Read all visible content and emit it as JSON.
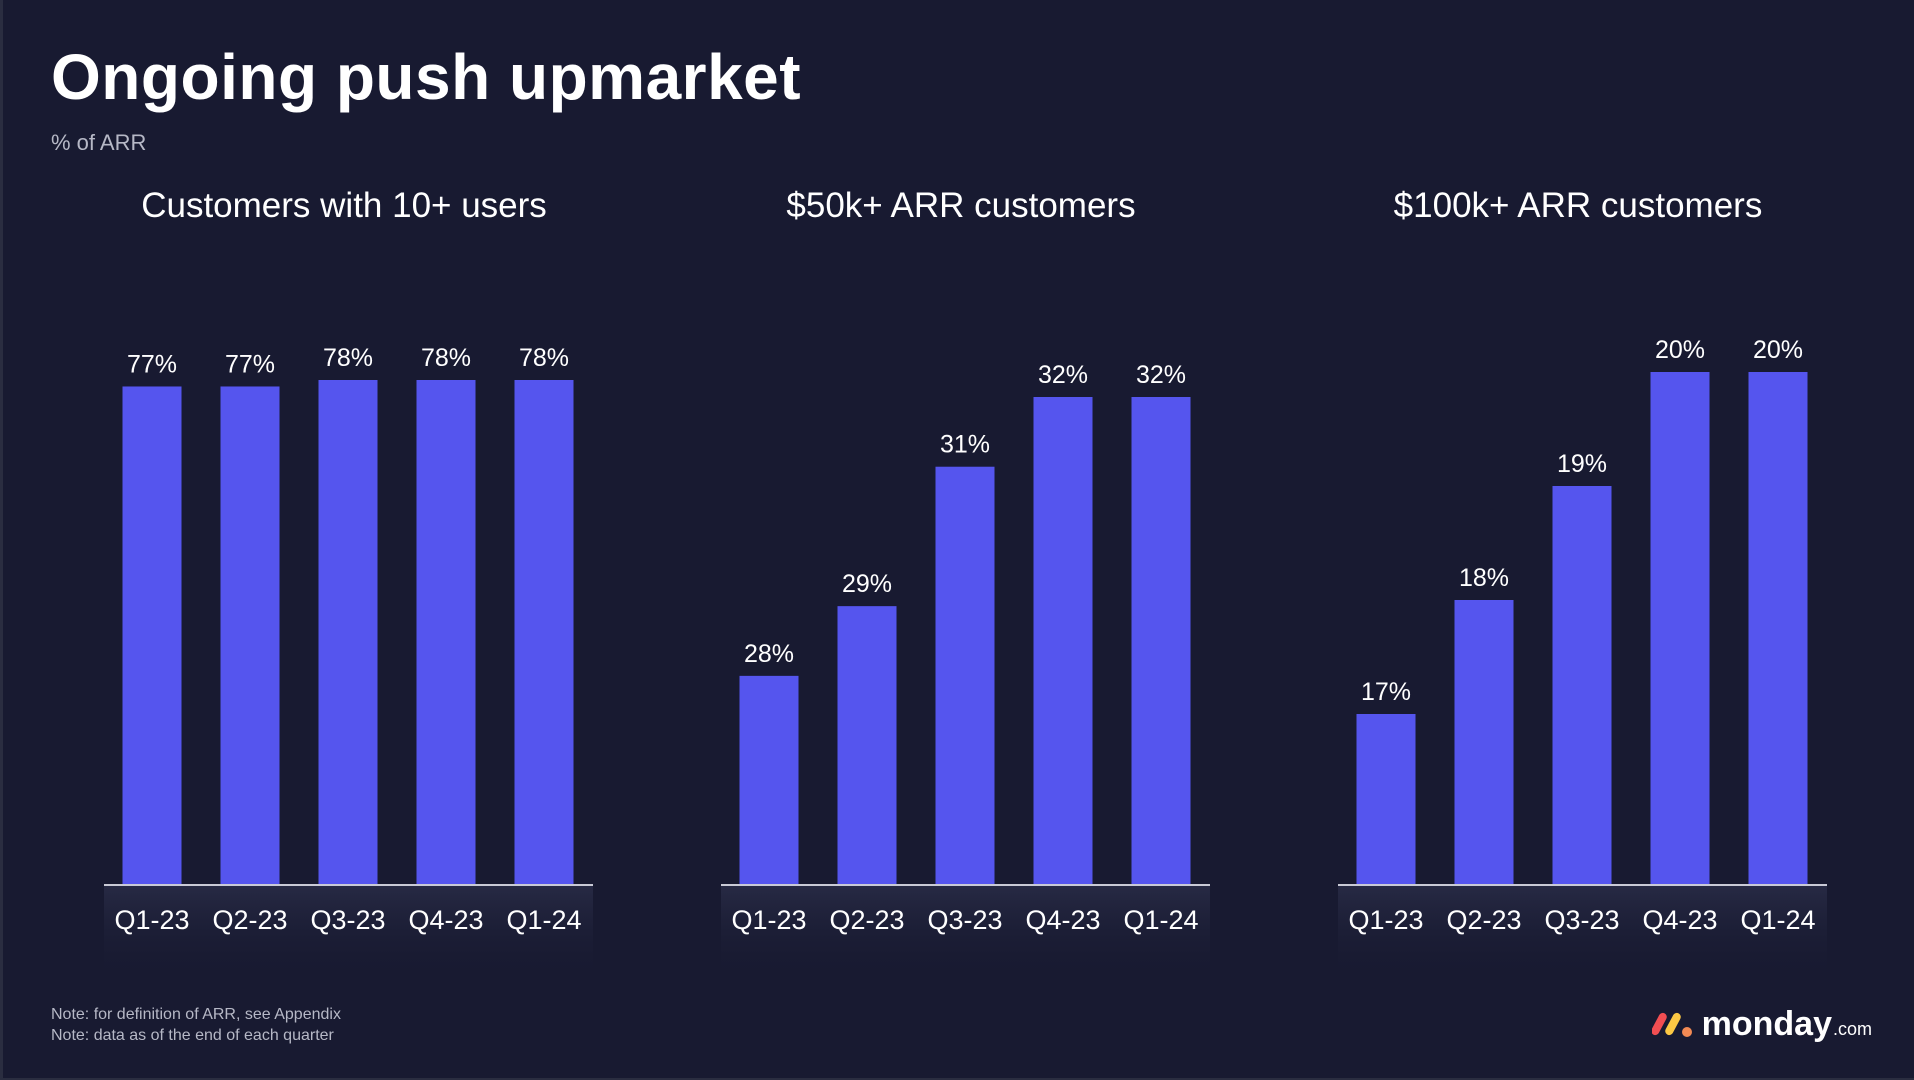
{
  "slide": {
    "title": "Ongoing push upmarket",
    "subtitle": "% of ARR",
    "notes": [
      "Note: for definition of ARR, see Appendix",
      "Note: data as of the end of each quarter"
    ],
    "logo": {
      "word": "monday",
      "suffix": ".com",
      "icon": "monday-logo-icon"
    }
  },
  "colors": {
    "background": "#181a31",
    "bar": "#5555ee",
    "axis": "#c9cad6",
    "text": "#ffffff",
    "muted": "#b6b8c6",
    "logo_red": "#f24e52",
    "logo_yellow": "#fcc844",
    "logo_green": "#f38a54"
  },
  "chart_data": [
    {
      "type": "bar",
      "title": "Customers with 10+ users",
      "categories": [
        "Q1-23",
        "Q2-23",
        "Q3-23",
        "Q4-23",
        "Q1-24"
      ],
      "values": [
        77,
        77,
        78,
        78,
        78
      ],
      "labels": [
        "77%",
        "77%",
        "78%",
        "78%",
        "78%"
      ],
      "ylabel": "% of ARR",
      "ylim": [
        0,
        90
      ]
    },
    {
      "type": "bar",
      "title": "$50k+ ARR customers",
      "categories": [
        "Q1-23",
        "Q2-23",
        "Q3-23",
        "Q4-23",
        "Q1-24"
      ],
      "values": [
        28,
        29,
        31,
        32,
        32
      ],
      "labels": [
        "28%",
        "29%",
        "31%",
        "32%",
        "32%"
      ],
      "ylabel": "% of ARR",
      "ylim": [
        25,
        33.5
      ]
    },
    {
      "type": "bar",
      "title": "$100k+ ARR customers",
      "categories": [
        "Q1-23",
        "Q2-23",
        "Q3-23",
        "Q4-23",
        "Q1-24"
      ],
      "values": [
        17,
        18,
        19,
        20,
        20
      ],
      "labels": [
        "17%",
        "18%",
        "19%",
        "20%",
        "20%"
      ],
      "ylabel": "% of ARR",
      "ylim": [
        15.5,
        20.5
      ]
    }
  ]
}
